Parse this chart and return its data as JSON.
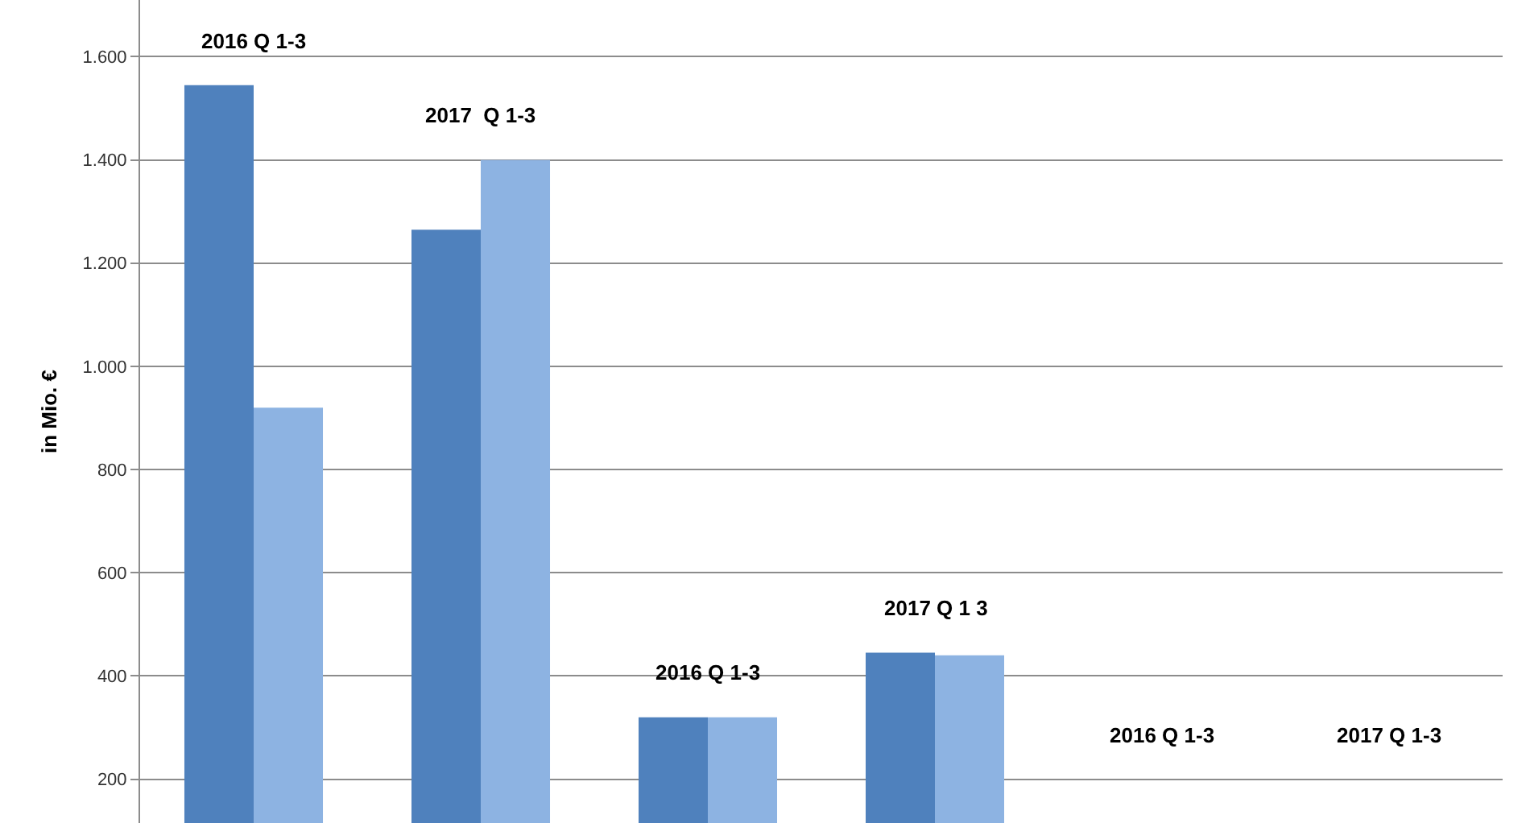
{
  "chart_data": {
    "type": "bar",
    "ylabel": "in Mio. €",
    "categories": [
      null,
      null,
      null,
      null,
      null,
      null
    ],
    "series": [
      {
        "color": "#4f81bd",
        "values": [
          1545,
          1265,
          320,
          445,
          null,
          null
        ]
      },
      {
        "color": "#8db3e2",
        "values": [
          920,
          1400,
          320,
          440,
          null,
          null
        ]
      }
    ],
    "annotations": [
      "2016 Q 1-3",
      "2017  Q 1-3",
      "2016 Q 1-3",
      "2017 Q 1 3",
      "2016 Q 1-3",
      "2017 Q 1-3"
    ],
    "ylim": [
      115,
      1710
    ],
    "yticks": [
      {
        "value": 200,
        "label": "200"
      },
      {
        "value": 400,
        "label": "400"
      },
      {
        "value": 600,
        "label": "600"
      },
      {
        "value": 800,
        "label": "800"
      },
      {
        "value": 1000,
        "label": "1.000"
      },
      {
        "value": 1200,
        "label": "1.200"
      },
      {
        "value": 1400,
        "label": "1.400"
      },
      {
        "value": 1600,
        "label": "1.600"
      }
    ],
    "grid": "y"
  }
}
